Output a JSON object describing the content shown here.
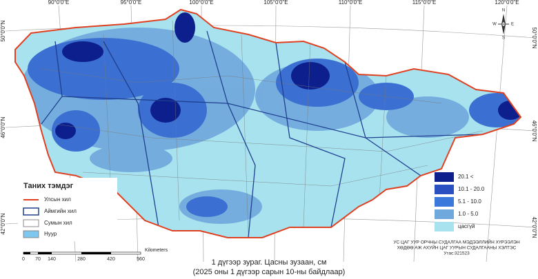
{
  "graticule": {
    "top": [
      "90°0'0\"E",
      "95°0'0\"E",
      "100°0'0\"E",
      "105°0'0\"E",
      "110°0'0\"E",
      "115°0'0\"E",
      "120°0'0\"E"
    ],
    "left": [
      "50°0'0\"N",
      "46°0'0\"N",
      "42°0'0\"N"
    ],
    "right": [
      "50°0'0\"N",
      "46°0'0\"N",
      "42°0'0\"N"
    ]
  },
  "compass": {
    "n": "N",
    "s": "S",
    "e": "E",
    "w": "W"
  },
  "legend": {
    "title": "Таних тэмдэг",
    "items": [
      "Улсын хил",
      "Аймгийн хил",
      "Сумын хил",
      "Нуур"
    ]
  },
  "snow_legend": {
    "items": [
      "20.1 <",
      "10.1 - 20.0",
      "5.1 - 10.0",
      "1.0 - 5.0",
      "цасгүй"
    ]
  },
  "scale_bar": {
    "labels": [
      "0",
      "70",
      "140",
      "280",
      "420",
      "560"
    ],
    "unit": "Kilometers"
  },
  "caption": {
    "line1": "1 дүгээр зураг. Цасны зузаан, см",
    "line2": "(2025 оны 1 дүгээр сарын 10-ны байдлаар)"
  },
  "credits": [
    "УС ЦАГ УУР ОРЧНЫ СУДАЛГАА МЭДЭЭЛЛИЙН ХҮРЭЭЛЭН",
    "ХӨДӨӨ АЖ АХУЙН ЦАГ УУРЫН СУДАЛГААНЫ ХЭЛТЭС",
    "Утас:321523"
  ]
}
